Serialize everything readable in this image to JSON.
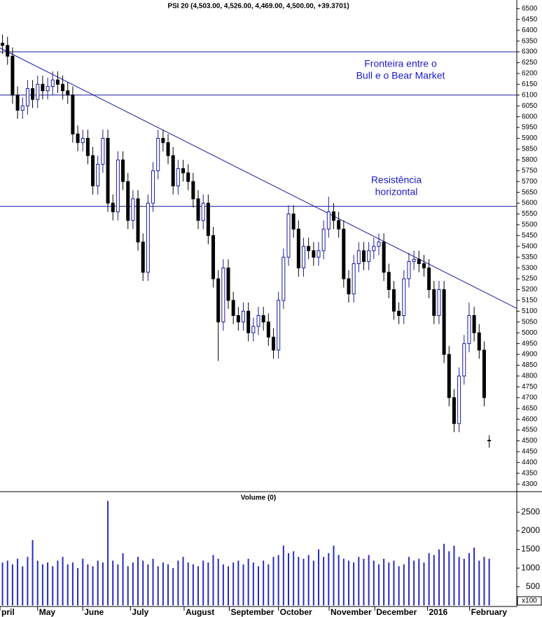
{
  "chart_data": [
    {
      "type": "candlestick",
      "title": "PSI 20 (4,503.00, 4,526.00, 4,469.00, 4,500.00, +39.3701)",
      "open": [
        6340,
        6330,
        6280,
        6100,
        6030,
        6050,
        6130,
        6080,
        6150,
        6120,
        6140,
        6170,
        6150,
        6120,
        6100,
        5920,
        5880,
        5900,
        5820,
        5680,
        5780,
        5900,
        5600,
        5560,
        5800,
        5700,
        5520,
        5620,
        5420,
        5280,
        5600,
        5750,
        5900,
        5880,
        5820,
        5680,
        5760,
        5740,
        5700,
        5620,
        5520,
        5600,
        5450,
        5250,
        5050,
        5300,
        5150,
        5080,
        5050,
        5100,
        5000,
        5030,
        5080,
        5050,
        4980,
        4920,
        5150,
        5350,
        5550,
        5480,
        5300,
        5400,
        5380,
        5350,
        5380,
        5480,
        5560,
        5520,
        5480,
        5250,
        5180,
        5320,
        5380,
        5330,
        5380,
        5400,
        5420,
        5280,
        5200,
        5100,
        5080,
        5250,
        5330,
        5340,
        5320,
        5300,
        5200,
        5080,
        5200,
        4900,
        4700,
        4580,
        4800,
        4950,
        5080,
        5000,
        4920,
        4503
      ],
      "high": [
        6380,
        6370,
        6320,
        6140,
        6090,
        6170,
        6170,
        6190,
        6190,
        6180,
        6210,
        6210,
        6190,
        6160,
        6140,
        5960,
        5940,
        5940,
        5860,
        5820,
        5940,
        5940,
        5640,
        5840,
        5840,
        5740,
        5660,
        5660,
        5460,
        5640,
        5790,
        5940,
        5940,
        5920,
        5860,
        5800,
        5800,
        5780,
        5740,
        5660,
        5640,
        5640,
        5490,
        5290,
        5340,
        5340,
        5190,
        5120,
        5140,
        5140,
        5070,
        5120,
        5120,
        5090,
        5020,
        5190,
        5390,
        5590,
        5590,
        5520,
        5440,
        5440,
        5420,
        5420,
        5520,
        5630,
        5600,
        5560,
        5520,
        5290,
        5360,
        5420,
        5420,
        5420,
        5440,
        5460,
        5460,
        5320,
        5240,
        5140,
        5290,
        5370,
        5380,
        5380,
        5360,
        5340,
        5240,
        5240,
        5240,
        4940,
        4740,
        4840,
        4990,
        5140,
        5120,
        5040,
        4960,
        4526
      ],
      "low": [
        6290,
        6240,
        6060,
        5990,
        5990,
        6010,
        6040,
        6040,
        6080,
        6080,
        6100,
        6110,
        6080,
        6060,
        5880,
        5840,
        5840,
        5780,
        5640,
        5640,
        5740,
        5560,
        5520,
        5520,
        5660,
        5480,
        5480,
        5380,
        5240,
        5240,
        5560,
        5710,
        5840,
        5780,
        5640,
        5640,
        5700,
        5660,
        5580,
        5480,
        5480,
        5410,
        5210,
        4870,
        5010,
        5110,
        5040,
        5010,
        5010,
        4960,
        4960,
        4990,
        5010,
        4940,
        4880,
        4880,
        5110,
        5310,
        5440,
        5260,
        5260,
        5340,
        5310,
        5310,
        5340,
        5440,
        5480,
        5440,
        5210,
        5140,
        5140,
        5280,
        5290,
        5290,
        5340,
        5360,
        5240,
        5160,
        5060,
        5040,
        5040,
        5210,
        5290,
        5280,
        5260,
        5160,
        5040,
        5040,
        4860,
        4660,
        4540,
        4540,
        4760,
        4910,
        4960,
        4880,
        4660,
        4469
      ],
      "close": [
        6330,
        6280,
        6100,
        6030,
        6050,
        6130,
        6080,
        6150,
        6120,
        6140,
        6170,
        6150,
        6120,
        6100,
        5920,
        5880,
        5900,
        5820,
        5680,
        5780,
        5900,
        5600,
        5560,
        5800,
        5700,
        5520,
        5620,
        5420,
        5280,
        5600,
        5750,
        5900,
        5880,
        5820,
        5680,
        5760,
        5740,
        5700,
        5620,
        5520,
        5600,
        5450,
        5250,
        5050,
        5300,
        5150,
        5080,
        5050,
        5100,
        5000,
        5030,
        5080,
        5050,
        4980,
        4920,
        5150,
        5350,
        5550,
        5480,
        5300,
        5400,
        5380,
        5350,
        5380,
        5480,
        5560,
        5520,
        5480,
        5250,
        5180,
        5320,
        5380,
        5330,
        5380,
        5400,
        5420,
        5280,
        5200,
        5100,
        5080,
        5250,
        5330,
        5340,
        5320,
        5300,
        5200,
        5080,
        5200,
        4900,
        4700,
        4580,
        4800,
        4950,
        5080,
        5000,
        4920,
        4700,
        4500
      ],
      "up_color": "#ffffff",
      "down_color": "#000000",
      "outline_color": "#1a1aa0",
      "xlim": [
        -0.5,
        102.5
      ],
      "ylim": [
        4265,
        6540
      ],
      "yticks": [
        4300,
        4350,
        4400,
        4450,
        4500,
        4550,
        4600,
        4650,
        4700,
        4750,
        4800,
        4850,
        4900,
        4950,
        5000,
        5050,
        5100,
        5150,
        5200,
        5250,
        5300,
        5350,
        5400,
        5450,
        5500,
        5550,
        5600,
        5650,
        5700,
        5750,
        5800,
        5850,
        5900,
        5950,
        6000,
        6050,
        6100,
        6150,
        6200,
        6250,
        6300,
        6350,
        6400,
        6450,
        6500
      ],
      "lines_color": "#1a1a9e",
      "lines": [
        {
          "y": 6300
        },
        {
          "y": 6100
        },
        {
          "y": 5585
        },
        {
          "x": [
            -0.5,
            102.5
          ],
          "y": [
            6318,
            5113
          ]
        }
      ],
      "annotation_color": "#1a1acc",
      "annotations": [
        {
          "text": [
            "Fronteira entre o",
            "Bull e o Bear Market"
          ]
        },
        {
          "text": [
            "Resistência",
            "horizontal"
          ]
        }
      ]
    },
    {
      "type": "bar",
      "title": "Volume (0)",
      "y_multiplier_label": "x100",
      "color": "#2a2ac0",
      "values": [
        1150,
        1200,
        1100,
        1250,
        1050,
        1300,
        1750,
        1200,
        1100,
        1150,
        1050,
        1200,
        1300,
        1100,
        1150,
        1000,
        1250,
        1100,
        1050,
        1200,
        1150,
        2800,
        1200,
        1100,
        1400,
        1050,
        1150,
        1300,
        1200,
        1100,
        1250,
        1050,
        1150,
        1100,
        1000,
        1200,
        1300,
        1150,
        1100,
        1050,
        1200,
        1150,
        1350,
        1250,
        1100,
        1050,
        1150,
        1200,
        1100,
        1250,
        1150,
        1050,
        1200,
        1100,
        1300,
        1350,
        1600,
        1400,
        1450,
        1300,
        1250,
        1350,
        1200,
        1500,
        1300,
        1400,
        1600,
        1350,
        1250,
        1200,
        1150,
        1300,
        1250,
        1350,
        1200,
        1100,
        1250,
        1150,
        1200,
        1050,
        1100,
        1300,
        1200,
        1250,
        1150,
        1400,
        1350,
        1500,
        1650,
        1450,
        1600,
        1300,
        1250,
        1400,
        1550,
        1200,
        1300,
        1250
      ],
      "xlim": [
        -0.5,
        102.5
      ],
      "ylim": [
        -30,
        3050
      ],
      "yticks": [
        500,
        1000,
        1500,
        2000,
        2500
      ],
      "xticks": [
        {
          "value": -0.5,
          "label": "pril"
        },
        {
          "value": 7,
          "label": "May"
        },
        {
          "value": 16,
          "label": "June"
        },
        {
          "value": 25.5,
          "label": "July"
        },
        {
          "value": 36.2,
          "label": "August"
        },
        {
          "value": 45.2,
          "label": "September"
        },
        {
          "value": 55,
          "label": "October"
        },
        {
          "value": 65.1,
          "label": "November"
        },
        {
          "value": 74.2,
          "label": "December"
        },
        {
          "value": 84.7,
          "label": "2016"
        },
        {
          "value": 93.1,
          "label": "February"
        }
      ]
    }
  ]
}
